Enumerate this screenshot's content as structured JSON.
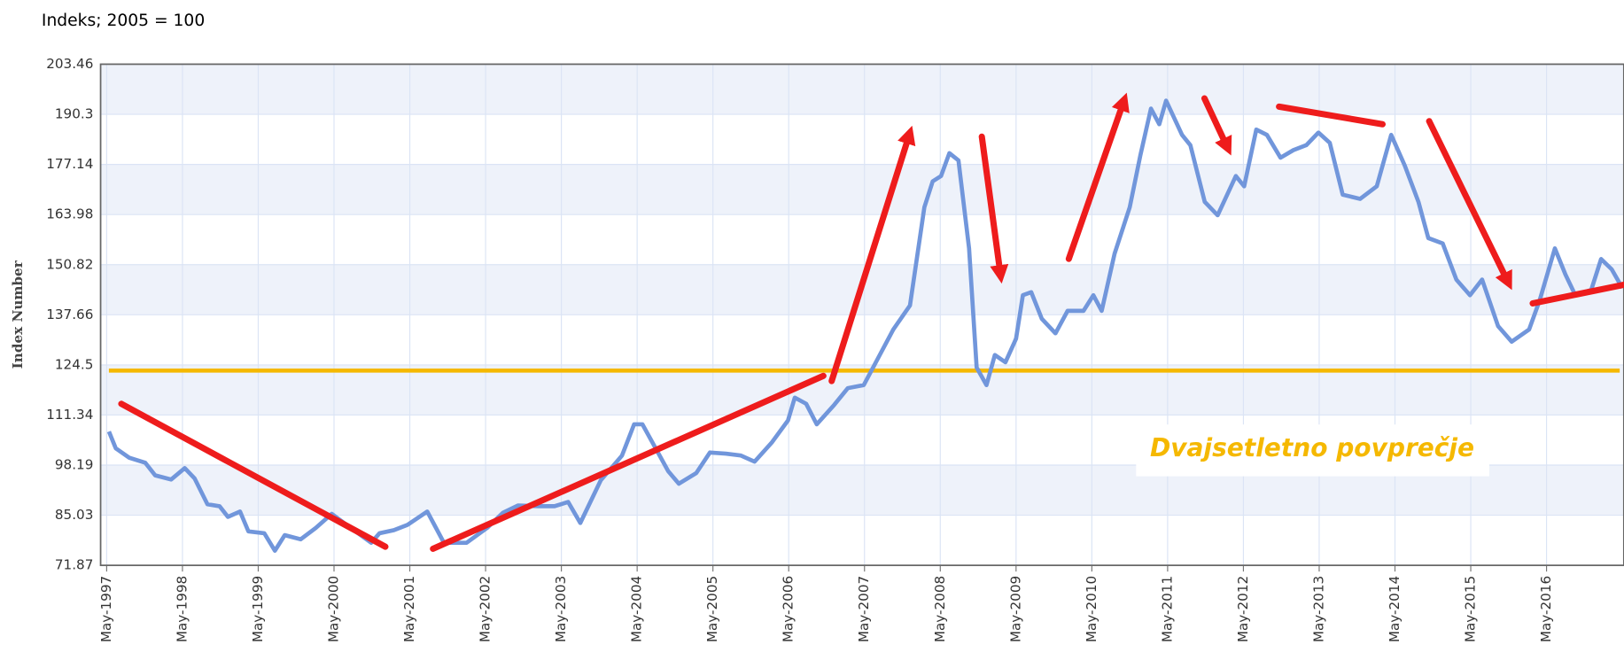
{
  "chart_data": {
    "type": "line",
    "title": "Indeks; 2005 = 100",
    "y_label": "Index Number",
    "ylim": [
      71.87,
      203.46
    ],
    "yticks": [
      71.87,
      85.03,
      98.19,
      111.34,
      124.5,
      137.66,
      150.82,
      163.98,
      177.14,
      190.3,
      203.46
    ],
    "xlim": [
      1997.25,
      2017.35
    ],
    "xticks": [
      {
        "value": 1997.33,
        "label": "May-1997"
      },
      {
        "value": 1998.33,
        "label": "May-1998"
      },
      {
        "value": 1999.33,
        "label": "May-1999"
      },
      {
        "value": 2000.33,
        "label": "May-2000"
      },
      {
        "value": 2001.33,
        "label": "May-2001"
      },
      {
        "value": 2002.33,
        "label": "May-2002"
      },
      {
        "value": 2003.33,
        "label": "May-2003"
      },
      {
        "value": 2004.33,
        "label": "May-2004"
      },
      {
        "value": 2005.33,
        "label": "May-2005"
      },
      {
        "value": 2006.33,
        "label": "May-2006"
      },
      {
        "value": 2007.33,
        "label": "May-2007"
      },
      {
        "value": 2008.33,
        "label": "May-2008"
      },
      {
        "value": 2009.33,
        "label": "May-2009"
      },
      {
        "value": 2010.33,
        "label": "May-2010"
      },
      {
        "value": 2011.33,
        "label": "May-2011"
      },
      {
        "value": 2012.33,
        "label": "May-2012"
      },
      {
        "value": 2013.33,
        "label": "May-2013"
      },
      {
        "value": 2014.33,
        "label": "May-2014"
      },
      {
        "value": 2015.33,
        "label": "May-2015"
      },
      {
        "value": 2016.33,
        "label": "May-2016"
      }
    ],
    "grid": true,
    "x": [
      1997.36,
      1997.45,
      1997.63,
      1997.84,
      1997.97,
      1998.18,
      1998.36,
      1998.49,
      1998.66,
      1998.82,
      1998.93,
      1999.09,
      1999.2,
      1999.41,
      1999.55,
      1999.68,
      1999.89,
      2000.09,
      2000.3,
      2000.57,
      2000.82,
      2000.93,
      2001.12,
      2001.3,
      2001.56,
      2001.78,
      2002.08,
      2002.35,
      2002.56,
      2002.76,
      2003.03,
      2003.24,
      2003.42,
      2003.58,
      2003.85,
      2004.13,
      2004.29,
      2004.4,
      2004.74,
      2004.88,
      2005.11,
      2005.29,
      2005.5,
      2005.7,
      2005.88,
      2006.11,
      2006.32,
      2006.41,
      2006.56,
      2006.7,
      2006.93,
      2007.11,
      2007.32,
      2007.55,
      2007.71,
      2007.93,
      2008.12,
      2008.23,
      2008.34,
      2008.45,
      2008.57,
      2008.71,
      2008.81,
      2008.94,
      2009.05,
      2009.19,
      2009.33,
      2009.42,
      2009.53,
      2009.67,
      2009.85,
      2010.01,
      2010.22,
      2010.35,
      2010.46,
      2010.63,
      2010.83,
      2010.97,
      2011.11,
      2011.22,
      2011.31,
      2011.52,
      2011.63,
      2011.82,
      2011.99,
      2012.23,
      2012.34,
      2012.5,
      2012.64,
      2012.82,
      2012.99,
      2013.16,
      2013.32,
      2013.47,
      2013.64,
      2013.87,
      2014.09,
      2014.28,
      2014.46,
      2014.64,
      2014.77,
      2014.96,
      2015.14,
      2015.32,
      2015.48,
      2015.69,
      2015.87,
      2016.1,
      2016.24,
      2016.44,
      2016.58,
      2016.71,
      2016.92,
      2017.05,
      2017.19,
      2017.33
    ],
    "series": [
      {
        "color": "#7196db",
        "values": [
          107.0,
          102.6,
          100.1,
          98.8,
          95.5,
          94.4,
          97.4,
          94.7,
          87.9,
          87.4,
          84.6,
          86.0,
          80.8,
          80.3,
          75.7,
          79.8,
          78.7,
          81.7,
          85.4,
          81.4,
          77.8,
          80.3,
          81.1,
          82.5,
          86.0,
          77.8,
          77.8,
          81.7,
          85.7,
          87.6,
          87.4,
          87.4,
          88.5,
          83.0,
          94.2,
          100.7,
          108.9,
          108.9,
          96.6,
          93.3,
          96.1,
          101.5,
          101.2,
          100.7,
          99.1,
          104.2,
          109.9,
          115.9,
          114.3,
          108.9,
          114.0,
          118.4,
          119.2,
          127.8,
          133.8,
          140.1,
          165.9,
          172.7,
          174.1,
          180.1,
          178.2,
          155.1,
          123.8,
          119.2,
          127.1,
          125.2,
          131.4,
          142.8,
          143.6,
          136.6,
          132.8,
          138.7,
          138.7,
          142.8,
          138.7,
          153.7,
          165.9,
          179.5,
          191.8,
          187.7,
          193.9,
          184.9,
          182.2,
          167.3,
          163.8,
          174.1,
          171.4,
          186.3,
          184.9,
          178.9,
          180.9,
          182.2,
          185.5,
          182.8,
          169.2,
          168.1,
          171.4,
          184.9,
          176.8,
          167.3,
          157.8,
          156.4,
          146.9,
          142.8,
          146.9,
          134.7,
          130.6,
          133.8,
          141.5,
          155.1,
          148.2,
          142.8,
          144.2,
          152.3,
          149.6,
          144.7
        ]
      }
    ],
    "average": {
      "value": 123,
      "color": "#f5b800",
      "label": "Dvajsetletno povprečje"
    }
  }
}
